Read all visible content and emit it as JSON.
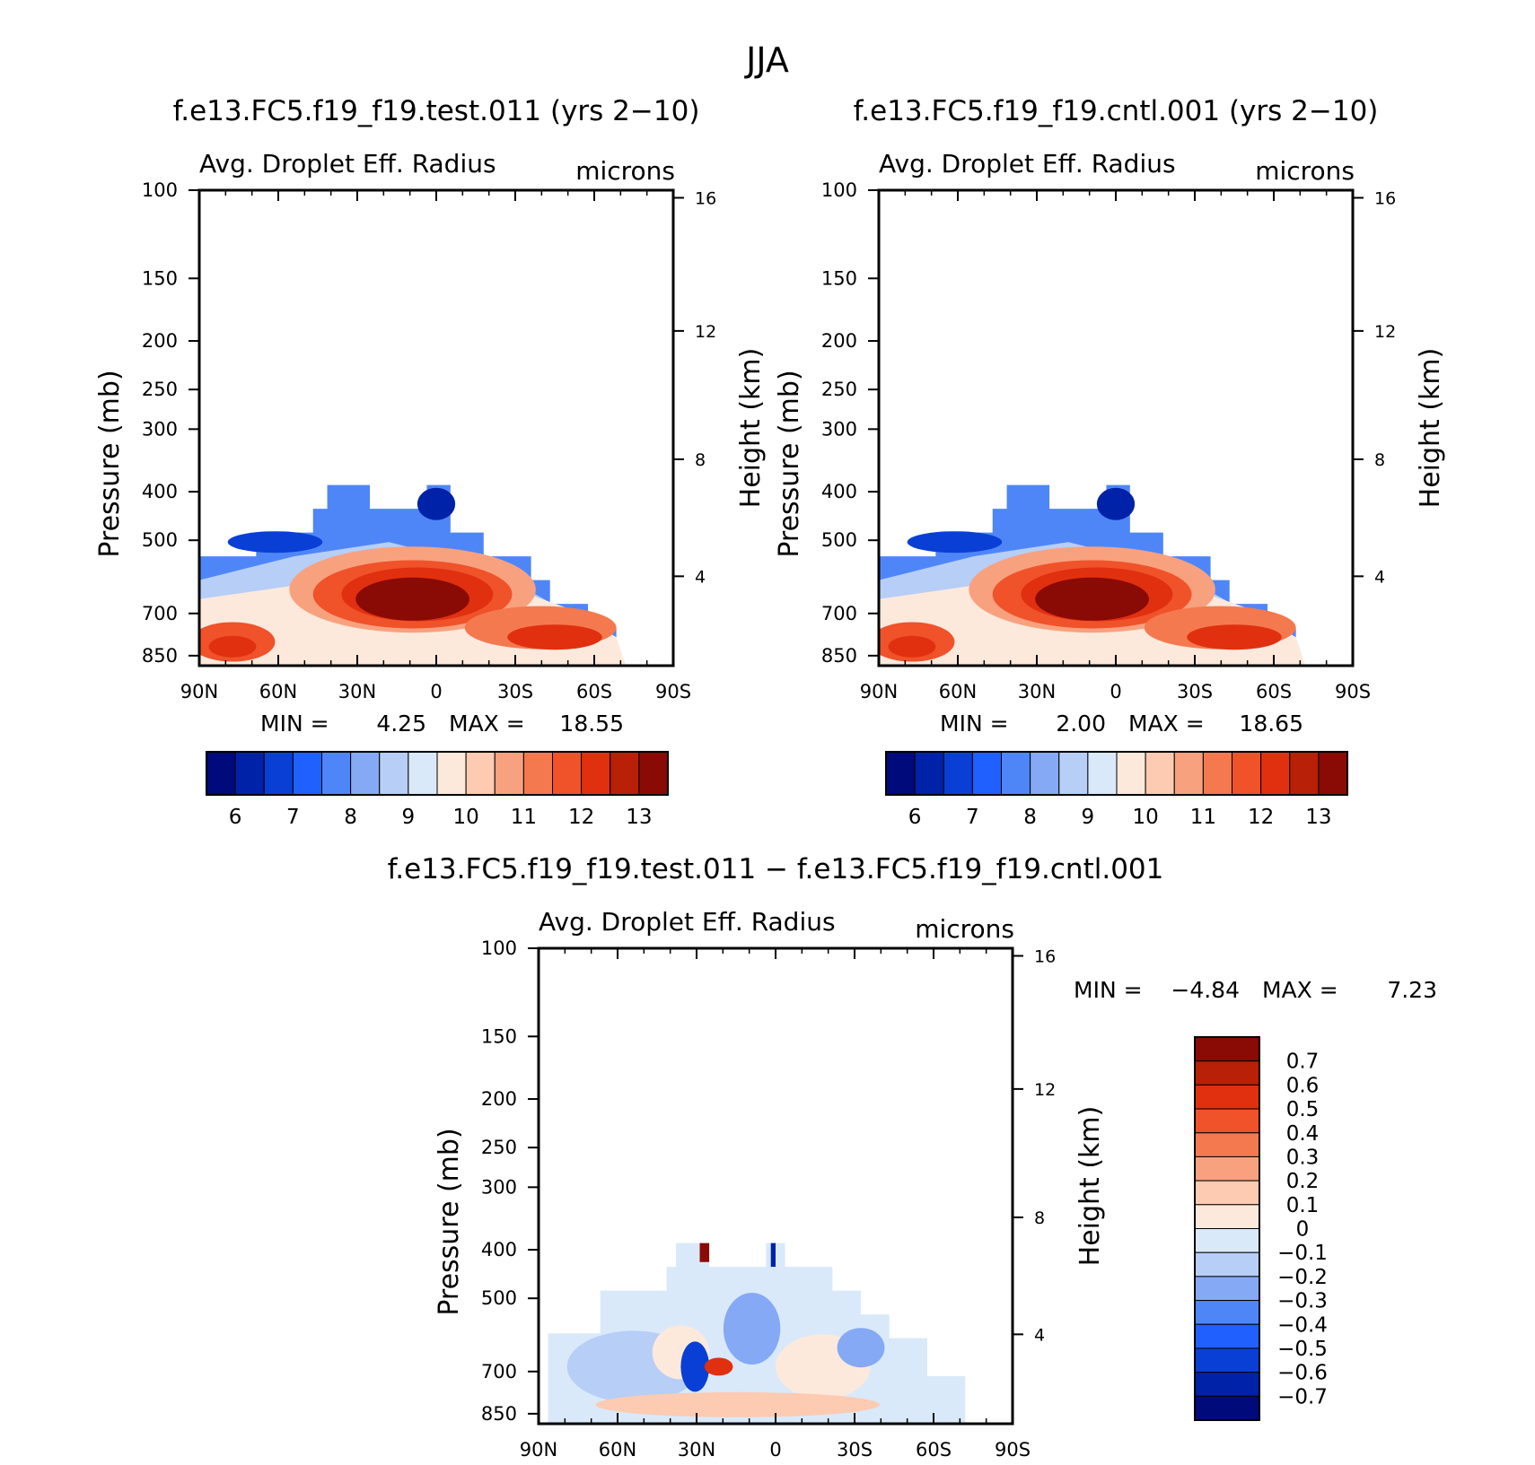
{
  "figure": {
    "title": "JJA"
  },
  "chart_data": [
    {
      "type": "heatmap",
      "title": "f.e13.FC5.f19_f19.test.011 (yrs 2−10)",
      "subtitle": "Avg. Droplet Eff. Radius",
      "units": "microns",
      "ylabel": "Pressure (mb)",
      "ylabel_right": "Height (km)",
      "x_ticks": [
        "90N",
        "60N",
        "30N",
        "0",
        "30S",
        "60S",
        "90S"
      ],
      "y_ticks": [
        "100",
        "150",
        "200",
        "250",
        "300",
        "400",
        "500",
        "700",
        "850"
      ],
      "y_ticks_right": [
        "16",
        "12",
        "8",
        "4"
      ],
      "min_label": "MIN =",
      "min_value": "4.25",
      "max_label": "MAX =",
      "max_value": "18.55",
      "colorbar": {
        "colors": [
          "#000a7a",
          "#0022a8",
          "#0a3fd6",
          "#2060ff",
          "#4f86f7",
          "#86a9f5",
          "#b7cef7",
          "#d9e9fa",
          "#fde9dc",
          "#fccbb2",
          "#f8a17f",
          "#f4794f",
          "#f0522a",
          "#e03010",
          "#b82008",
          "#8a0a05"
        ],
        "labels": [
          "6",
          "7",
          "8",
          "9",
          "10",
          "11",
          "12",
          "13"
        ]
      }
    },
    {
      "type": "heatmap",
      "title": "f.e13.FC5.f19_f19.cntl.001 (yrs 2−10)",
      "subtitle": "Avg. Droplet Eff. Radius",
      "units": "microns",
      "ylabel": "Pressure (mb)",
      "ylabel_right": "Height (km)",
      "x_ticks": [
        "90N",
        "60N",
        "30N",
        "0",
        "30S",
        "60S",
        "90S"
      ],
      "y_ticks": [
        "100",
        "150",
        "200",
        "250",
        "300",
        "400",
        "500",
        "700",
        "850"
      ],
      "y_ticks_right": [
        "16",
        "12",
        "8",
        "4"
      ],
      "min_label": "MIN =",
      "min_value": "2.00",
      "max_label": "MAX =",
      "max_value": "18.65",
      "colorbar": {
        "colors": [
          "#000a7a",
          "#0022a8",
          "#0a3fd6",
          "#2060ff",
          "#4f86f7",
          "#86a9f5",
          "#b7cef7",
          "#d9e9fa",
          "#fde9dc",
          "#fccbb2",
          "#f8a17f",
          "#f4794f",
          "#f0522a",
          "#e03010",
          "#b82008",
          "#8a0a05"
        ],
        "labels": [
          "6",
          "7",
          "8",
          "9",
          "10",
          "11",
          "12",
          "13"
        ]
      }
    },
    {
      "type": "heatmap",
      "title": "f.e13.FC5.f19_f19.test.011 − f.e13.FC5.f19_f19.cntl.001",
      "subtitle": "Avg. Droplet Eff. Radius",
      "units": "microns",
      "ylabel": "Pressure (mb)",
      "ylabel_right": "Height (km)",
      "x_ticks": [
        "90N",
        "60N",
        "30N",
        "0",
        "30S",
        "60S",
        "90S"
      ],
      "y_ticks": [
        "100",
        "150",
        "200",
        "250",
        "300",
        "400",
        "500",
        "700",
        "850"
      ],
      "y_ticks_right": [
        "16",
        "12",
        "8",
        "4"
      ],
      "min_label": "MIN =",
      "min_value": "−4.84",
      "max_label": "MAX =",
      "max_value": "7.23",
      "colorbar": {
        "colors": [
          "#8a0a05",
          "#b82008",
          "#e03010",
          "#f0522a",
          "#f4794f",
          "#f8a17f",
          "#fccbb2",
          "#fde9dc",
          "#d9e9fa",
          "#b7cef7",
          "#86a9f5",
          "#4f86f7",
          "#2060ff",
          "#0a3fd6",
          "#0022a8",
          "#000a7a"
        ],
        "labels": [
          "0.7",
          "0.6",
          "0.5",
          "0.4",
          "0.3",
          "0.2",
          "0.1",
          "0",
          "−0.1",
          "−0.2",
          "−0.3",
          "−0.4",
          "−0.5",
          "−0.6",
          "−0.7"
        ]
      }
    }
  ]
}
